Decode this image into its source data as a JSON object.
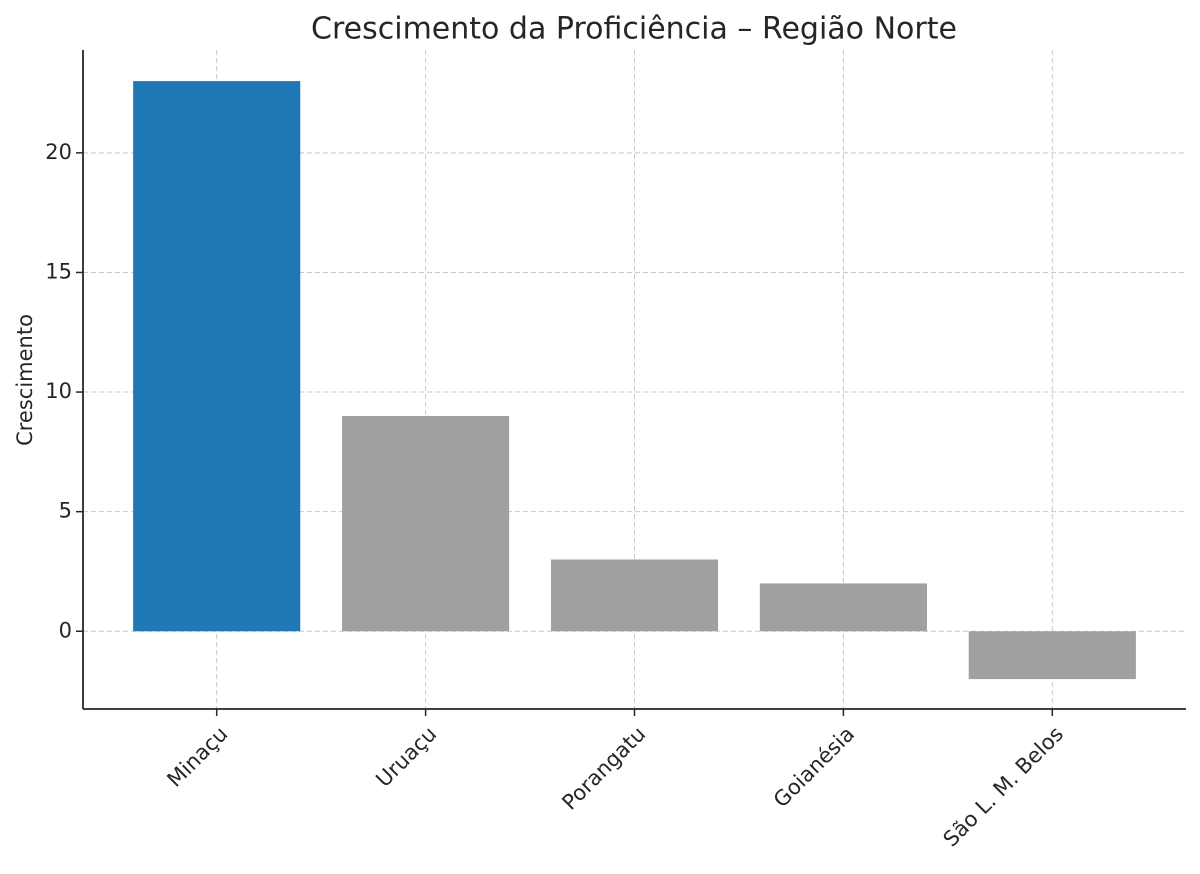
{
  "chart_data": {
    "type": "bar",
    "title": "Crescimento da Proficiência – Região Norte",
    "y_label": "Crescimento",
    "categories": [
      "Minaçu",
      "Uruaçu",
      "Porangatu",
      "Goianésia",
      "São L. M. Belos"
    ],
    "values": [
      23,
      9,
      3,
      2,
      -2
    ],
    "colors": [
      "#1f77b4",
      "#a0a0a0",
      "#a0a0a0",
      "#a0a0a0",
      "#a0a0a0"
    ],
    "ylim": [
      -3.25,
      24.3
    ],
    "yticks": [
      0,
      5,
      10,
      15,
      20
    ],
    "grid": true
  }
}
